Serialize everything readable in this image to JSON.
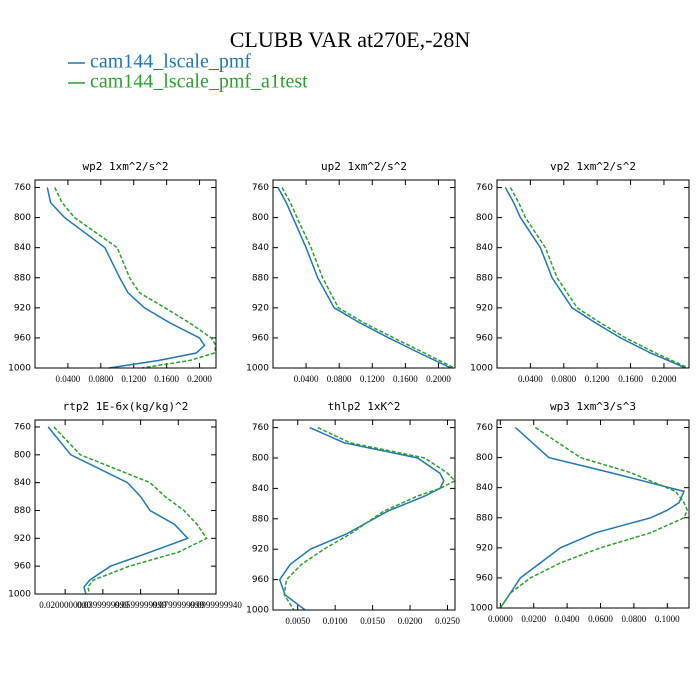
{
  "title": "CLUBB VAR at270E,-28N",
  "legend": [
    {
      "name": "cam144_lscale_pmf",
      "color": "#1f77b4"
    },
    {
      "name": "cam144_lscale_pmf_a1test",
      "color": "#2ca02c"
    }
  ],
  "chart_data": [
    {
      "type": "line",
      "title": "wp2   1xm^2/s^2",
      "y": [
        760,
        780,
        800,
        840,
        880,
        900,
        920,
        940,
        960,
        970,
        980,
        990,
        1000
      ],
      "series": [
        {
          "color": "#1f77b4",
          "values": [
            0.015,
            0.019,
            0.036,
            0.085,
            0.103,
            0.113,
            0.133,
            0.164,
            0.2,
            0.206,
            0.196,
            0.15,
            0.09
          ]
        },
        {
          "color": "#2ca02c",
          "values": [
            0.024,
            0.033,
            0.048,
            0.1,
            0.115,
            0.127,
            0.158,
            0.188,
            0.214,
            0.22,
            0.218,
            0.188,
            0.13
          ]
        }
      ],
      "xlim": [
        0,
        0.22
      ],
      "ylim": [
        1000,
        750
      ],
      "xticks": [
        {
          "value": 0.04,
          "label": "0.0400"
        },
        {
          "value": 0.08,
          "label": "0.0800"
        },
        {
          "value": 0.12,
          "label": "0.1200"
        },
        {
          "value": 0.16,
          "label": "0.1600"
        },
        {
          "value": 0.2,
          "label": "0.2000"
        }
      ],
      "yticks": [
        760,
        800,
        840,
        880,
        920,
        960,
        1000
      ]
    },
    {
      "type": "line",
      "title": "up2   1xm^2/s^2",
      "y": [
        760,
        780,
        800,
        840,
        880,
        920,
        940,
        960,
        980,
        1000
      ],
      "series": [
        {
          "color": "#1f77b4",
          "values": [
            0.006,
            0.016,
            0.024,
            0.04,
            0.054,
            0.074,
            0.105,
            0.14,
            0.177,
            0.215
          ]
        },
        {
          "color": "#2ca02c",
          "values": [
            0.011,
            0.021,
            0.029,
            0.046,
            0.06,
            0.079,
            0.11,
            0.146,
            0.183,
            0.219
          ]
        }
      ],
      "xlim": [
        0,
        0.22
      ],
      "ylim": [
        1000,
        750
      ],
      "xticks": [
        {
          "value": 0.04,
          "label": "0.0400"
        },
        {
          "value": 0.08,
          "label": "0.0800"
        },
        {
          "value": 0.12,
          "label": "0.1200"
        },
        {
          "value": 0.16,
          "label": "0.1600"
        },
        {
          "value": 0.2,
          "label": "0.2000"
        }
      ],
      "yticks": [
        760,
        800,
        840,
        880,
        920,
        960,
        1000
      ]
    },
    {
      "type": "line",
      "title": "vp2   1xm^2/s^2",
      "y": [
        760,
        780,
        800,
        840,
        880,
        920,
        940,
        960,
        980,
        1000
      ],
      "series": [
        {
          "color": "#1f77b4",
          "values": [
            0.01,
            0.02,
            0.028,
            0.052,
            0.066,
            0.09,
            0.118,
            0.148,
            0.184,
            0.226
          ]
        },
        {
          "color": "#2ca02c",
          "values": [
            0.016,
            0.026,
            0.034,
            0.058,
            0.072,
            0.096,
            0.124,
            0.154,
            0.19,
            0.229
          ]
        }
      ],
      "xlim": [
        0,
        0.23
      ],
      "ylim": [
        1000,
        750
      ],
      "xticks": [
        {
          "value": 0.04,
          "label": "0.0400"
        },
        {
          "value": 0.08,
          "label": "0.0800"
        },
        {
          "value": 0.12,
          "label": "0.1200"
        },
        {
          "value": 0.16,
          "label": "0.1600"
        },
        {
          "value": 0.2,
          "label": "0.2000"
        }
      ],
      "yticks": [
        760,
        800,
        840,
        880,
        920,
        960,
        1000
      ]
    },
    {
      "type": "line",
      "title": "rtp2   1E-6x(kg/kg)^2",
      "y": [
        760,
        800,
        840,
        860,
        880,
        900,
        920,
        940,
        960,
        980,
        990,
        1000
      ],
      "series": [
        {
          "color": "#1f77b4",
          "values": [
            0.011,
            0.023,
            0.053,
            0.06,
            0.065,
            0.078,
            0.085,
            0.065,
            0.044,
            0.033,
            0.03,
            0.031
          ]
        },
        {
          "color": "#2ca02c",
          "values": [
            0.014,
            0.028,
            0.065,
            0.073,
            0.083,
            0.09,
            0.095,
            0.08,
            0.054,
            0.035,
            0.032,
            0.033
          ]
        }
      ],
      "xlim": [
        0.004,
        0.1
      ],
      "ylim": [
        1000,
        750
      ],
      "xticks": [
        {
          "value": 0.02,
          "label": "0.0200000000"
        },
        {
          "value": 0.04,
          "label": "0.0399999999"
        },
        {
          "value": 0.06,
          "label": "0.0599999999"
        },
        {
          "value": 0.08,
          "label": "0.0799999999"
        },
        {
          "value": 0.1,
          "label": "0.0999999940"
        }
      ],
      "yticks": [
        760,
        800,
        840,
        880,
        920,
        960,
        1000
      ]
    },
    {
      "type": "line",
      "title": "thlp2   1xK^2",
      "y": [
        760,
        780,
        800,
        820,
        830,
        840,
        850,
        870,
        900,
        920,
        940,
        960,
        980,
        1000
      ],
      "series": [
        {
          "color": "#1f77b4",
          "values": [
            0.0066,
            0.0112,
            0.021,
            0.024,
            0.0245,
            0.024,
            0.022,
            0.017,
            0.0115,
            0.0067,
            0.004,
            0.0026,
            0.0033,
            0.006
          ]
        },
        {
          "color": "#2ca02c",
          "values": [
            0.0077,
            0.012,
            0.022,
            0.025,
            0.026,
            0.024,
            0.021,
            0.0165,
            0.012,
            0.0085,
            0.0055,
            0.0035,
            0.0032,
            0.0045
          ]
        }
      ],
      "xlim": [
        0.0017,
        0.026
      ],
      "ylim": [
        1000,
        750
      ],
      "xticks": [
        {
          "value": 0.005,
          "label": "0.0050"
        },
        {
          "value": 0.01,
          "label": "0.0100"
        },
        {
          "value": 0.015,
          "label": "0.0150"
        },
        {
          "value": 0.02,
          "label": "0.0200"
        },
        {
          "value": 0.025,
          "label": "0.0250"
        }
      ],
      "yticks": [
        760,
        800,
        840,
        880,
        920,
        960,
        1000
      ]
    },
    {
      "type": "line",
      "title": "wp3   1xm^3/s^3",
      "y": [
        760,
        800,
        820,
        845,
        860,
        870,
        880,
        900,
        920,
        940,
        960,
        980,
        1000
      ],
      "series": [
        {
          "color": "#1f77b4",
          "values": [
            0.009,
            0.029,
            0.066,
            0.11,
            0.107,
            0.1,
            0.09,
            0.057,
            0.036,
            0.024,
            0.012,
            0.006,
            0
          ]
        },
        {
          "color": "#2ca02c",
          "values": [
            0.021,
            0.048,
            0.078,
            0.105,
            0.11,
            0.112,
            0.11,
            0.09,
            0.06,
            0.036,
            0.018,
            0.006,
            0
          ]
        }
      ],
      "xlim": [
        -0.002,
        0.113
      ],
      "ylim": [
        1000,
        750
      ],
      "xticks": [
        {
          "value": 0,
          "label": "0.0000"
        },
        {
          "value": 0.02,
          "label": "0.0200"
        },
        {
          "value": 0.04,
          "label": "0.0400"
        },
        {
          "value": 0.06,
          "label": "0.0600"
        },
        {
          "value": 0.08,
          "label": "0.0800"
        },
        {
          "value": 0.1,
          "label": "0.1000"
        }
      ],
      "yticks": [
        760,
        800,
        840,
        880,
        920,
        960,
        1000
      ]
    }
  ]
}
